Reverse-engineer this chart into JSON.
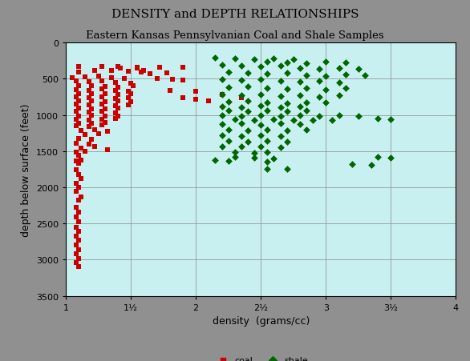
{
  "title1": "DENSITY and DEPTH RELATIONSHIPS",
  "title2": "Eastern Kansas Pennsylvanian Coal and Shale Samples",
  "xlabel": "density  (grams/cc)",
  "ylabel": "depth below surface (feet)",
  "xlim": [
    1,
    4
  ],
  "ylim": [
    3500,
    0
  ],
  "xticks": [
    1,
    1.5,
    2,
    2.5,
    3,
    3.5,
    4
  ],
  "xtick_labels": [
    "1",
    "1½",
    "2",
    "2½",
    "3",
    "3½",
    "4"
  ],
  "yticks": [
    0,
    500,
    1000,
    1500,
    2000,
    2500,
    3000,
    3500
  ],
  "ytick_labels": [
    "0",
    "500",
    "1000",
    "1500",
    "2000",
    "2500",
    "3000",
    "3500"
  ],
  "bg_color": "#c8f0f0",
  "outer_bg": "#909090",
  "grid_color": "#888888",
  "coal_color": "#cc0000",
  "shale_color": "#006600",
  "coal_data": [
    [
      1.1,
      330
    ],
    [
      1.28,
      330
    ],
    [
      1.4,
      330
    ],
    [
      1.55,
      340
    ],
    [
      1.72,
      340
    ],
    [
      1.9,
      340
    ],
    [
      1.1,
      410
    ],
    [
      1.22,
      390
    ],
    [
      1.35,
      380
    ],
    [
      1.48,
      400
    ],
    [
      1.58,
      410
    ],
    [
      1.05,
      480
    ],
    [
      1.15,
      470
    ],
    [
      1.25,
      460
    ],
    [
      1.35,
      480
    ],
    [
      1.45,
      490
    ],
    [
      1.08,
      530
    ],
    [
      1.18,
      540
    ],
    [
      1.28,
      530
    ],
    [
      1.38,
      550
    ],
    [
      1.5,
      560
    ],
    [
      1.1,
      600
    ],
    [
      1.2,
      590
    ],
    [
      1.3,
      610
    ],
    [
      1.4,
      620
    ],
    [
      1.52,
      600
    ],
    [
      1.08,
      650
    ],
    [
      1.18,
      660
    ],
    [
      1.28,
      640
    ],
    [
      1.38,
      660
    ],
    [
      1.48,
      670
    ],
    [
      1.1,
      700
    ],
    [
      1.2,
      710
    ],
    [
      1.3,
      700
    ],
    [
      1.4,
      720
    ],
    [
      1.5,
      710
    ],
    [
      1.08,
      750
    ],
    [
      1.18,
      760
    ],
    [
      1.28,
      750
    ],
    [
      1.38,
      770
    ],
    [
      1.48,
      760
    ],
    [
      1.1,
      800
    ],
    [
      1.2,
      810
    ],
    [
      1.3,
      820
    ],
    [
      1.4,
      800
    ],
    [
      1.5,
      820
    ],
    [
      1.08,
      850
    ],
    [
      1.18,
      860
    ],
    [
      1.28,
      850
    ],
    [
      1.38,
      870
    ],
    [
      1.48,
      860
    ],
    [
      1.1,
      900
    ],
    [
      1.2,
      910
    ],
    [
      1.3,
      920
    ],
    [
      1.4,
      900
    ],
    [
      1.08,
      950
    ],
    [
      1.18,
      960
    ],
    [
      1.28,
      950
    ],
    [
      1.38,
      970
    ],
    [
      1.1,
      1010
    ],
    [
      1.2,
      1000
    ],
    [
      1.3,
      1020
    ],
    [
      1.4,
      1010
    ],
    [
      1.08,
      1060
    ],
    [
      1.18,
      1070
    ],
    [
      1.28,
      1060
    ],
    [
      1.38,
      1050
    ],
    [
      1.1,
      1110
    ],
    [
      1.2,
      1120
    ],
    [
      1.3,
      1100
    ],
    [
      1.08,
      1150
    ],
    [
      1.18,
      1160
    ],
    [
      1.28,
      1140
    ],
    [
      1.12,
      1210
    ],
    [
      1.22,
      1200
    ],
    [
      1.32,
      1220
    ],
    [
      1.15,
      1270
    ],
    [
      1.25,
      1260
    ],
    [
      1.1,
      1330
    ],
    [
      1.2,
      1340
    ],
    [
      1.08,
      1390
    ],
    [
      1.18,
      1400
    ],
    [
      1.12,
      1460
    ],
    [
      1.22,
      1440
    ],
    [
      1.08,
      1510
    ],
    [
      1.15,
      1500
    ],
    [
      1.1,
      1560
    ],
    [
      1.12,
      1620
    ],
    [
      1.08,
      1630
    ],
    [
      1.1,
      1670
    ],
    [
      1.32,
      1480
    ],
    [
      1.9,
      760
    ],
    [
      2.0,
      780
    ],
    [
      2.1,
      800
    ],
    [
      1.8,
      660
    ],
    [
      2.0,
      670
    ],
    [
      1.7,
      500
    ],
    [
      1.82,
      510
    ],
    [
      1.9,
      520
    ],
    [
      1.65,
      430
    ],
    [
      1.78,
      420
    ],
    [
      1.6,
      380
    ],
    [
      1.55,
      350
    ],
    [
      1.42,
      350
    ],
    [
      2.2,
      720
    ],
    [
      2.35,
      760
    ],
    [
      1.08,
      1760
    ],
    [
      1.1,
      1820
    ],
    [
      1.12,
      1880
    ],
    [
      1.08,
      1940
    ],
    [
      1.1,
      2000
    ],
    [
      1.08,
      2060
    ],
    [
      1.12,
      2130
    ],
    [
      1.1,
      2180
    ],
    [
      1.08,
      2280
    ],
    [
      1.1,
      2340
    ],
    [
      1.08,
      2410
    ],
    [
      1.1,
      2480
    ],
    [
      1.08,
      2550
    ],
    [
      1.1,
      2610
    ],
    [
      1.08,
      2670
    ],
    [
      1.1,
      2730
    ],
    [
      1.08,
      2800
    ],
    [
      1.1,
      2860
    ],
    [
      1.08,
      2920
    ],
    [
      1.1,
      2980
    ],
    [
      1.08,
      3040
    ],
    [
      1.1,
      3100
    ]
  ],
  "shale_data": [
    [
      2.15,
      210
    ],
    [
      2.3,
      220
    ],
    [
      2.45,
      230
    ],
    [
      2.6,
      215
    ],
    [
      2.75,
      225
    ],
    [
      2.55,
      260
    ],
    [
      2.7,
      270
    ],
    [
      2.85,
      280
    ],
    [
      3.0,
      265
    ],
    [
      3.15,
      275
    ],
    [
      2.2,
      310
    ],
    [
      2.35,
      320
    ],
    [
      2.5,
      330
    ],
    [
      2.65,
      315
    ],
    [
      2.8,
      350
    ],
    [
      2.95,
      360
    ],
    [
      3.1,
      350
    ],
    [
      3.25,
      360
    ],
    [
      2.25,
      410
    ],
    [
      2.4,
      420
    ],
    [
      2.55,
      430
    ],
    [
      2.7,
      415
    ],
    [
      2.85,
      450
    ],
    [
      3.0,
      460
    ],
    [
      3.15,
      445
    ],
    [
      3.3,
      455
    ],
    [
      2.2,
      510
    ],
    [
      2.35,
      520
    ],
    [
      2.5,
      510
    ],
    [
      2.65,
      525
    ],
    [
      2.8,
      540
    ],
    [
      2.95,
      530
    ],
    [
      3.1,
      545
    ],
    [
      2.25,
      620
    ],
    [
      2.4,
      610
    ],
    [
      2.55,
      625
    ],
    [
      2.7,
      640
    ],
    [
      2.85,
      630
    ],
    [
      3.0,
      645
    ],
    [
      3.15,
      630
    ],
    [
      2.2,
      720
    ],
    [
      2.35,
      730
    ],
    [
      2.5,
      720
    ],
    [
      2.65,
      740
    ],
    [
      2.8,
      730
    ],
    [
      2.95,
      745
    ],
    [
      3.1,
      730
    ],
    [
      2.25,
      820
    ],
    [
      2.4,
      810
    ],
    [
      2.55,
      825
    ],
    [
      2.7,
      840
    ],
    [
      2.85,
      830
    ],
    [
      3.0,
      825
    ],
    [
      2.2,
      880
    ],
    [
      2.35,
      890
    ],
    [
      2.5,
      875
    ],
    [
      2.65,
      895
    ],
    [
      2.8,
      885
    ],
    [
      2.25,
      940
    ],
    [
      2.4,
      950
    ],
    [
      2.55,
      935
    ],
    [
      2.7,
      950
    ],
    [
      2.85,
      940
    ],
    [
      2.2,
      1000
    ],
    [
      2.35,
      1010
    ],
    [
      2.5,
      1000
    ],
    [
      2.65,
      1015
    ],
    [
      2.8,
      1005
    ],
    [
      2.95,
      1015
    ],
    [
      3.1,
      1000
    ],
    [
      3.25,
      1010
    ],
    [
      2.3,
      1060
    ],
    [
      2.45,
      1070
    ],
    [
      2.6,
      1060
    ],
    [
      2.75,
      1075
    ],
    [
      2.9,
      1065
    ],
    [
      3.05,
      1070
    ],
    [
      2.2,
      1130
    ],
    [
      2.35,
      1120
    ],
    [
      2.5,
      1135
    ],
    [
      2.65,
      1120
    ],
    [
      2.8,
      1130
    ],
    [
      2.25,
      1200
    ],
    [
      2.4,
      1210
    ],
    [
      2.55,
      1200
    ],
    [
      2.7,
      1210
    ],
    [
      2.85,
      1200
    ],
    [
      2.2,
      1280
    ],
    [
      2.35,
      1290
    ],
    [
      2.5,
      1275
    ],
    [
      2.65,
      1290
    ],
    [
      2.25,
      1360
    ],
    [
      2.4,
      1370
    ],
    [
      2.55,
      1355
    ],
    [
      2.7,
      1370
    ],
    [
      2.2,
      1430
    ],
    [
      2.35,
      1440
    ],
    [
      2.5,
      1430
    ],
    [
      2.65,
      1445
    ],
    [
      2.3,
      1510
    ],
    [
      2.45,
      1520
    ],
    [
      2.55,
      1510
    ],
    [
      2.3,
      1580
    ],
    [
      2.45,
      1590
    ],
    [
      2.6,
      1600
    ],
    [
      3.4,
      1050
    ],
    [
      3.5,
      1060
    ],
    [
      3.4,
      1580
    ],
    [
      3.5,
      1590
    ],
    [
      2.15,
      1620
    ],
    [
      2.25,
      1630
    ],
    [
      2.55,
      1650
    ],
    [
      3.2,
      1680
    ],
    [
      3.35,
      1690
    ],
    [
      2.55,
      1740
    ],
    [
      2.7,
      1750
    ]
  ]
}
